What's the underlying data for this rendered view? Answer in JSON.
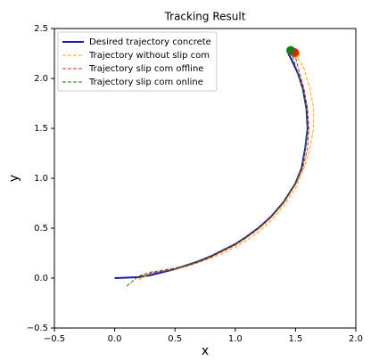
{
  "chart_data": {
    "type": "line",
    "title": "Tracking Result",
    "x_label": "x",
    "y_label": "y",
    "xlim": [
      -0.5,
      2.0
    ],
    "ylim": [
      -0.5,
      2.5
    ],
    "xticks": [
      {
        "value": -0.5,
        "label": "−0.5"
      },
      {
        "value": 0,
        "label": "0.0"
      },
      0.5,
      {
        "value": 1,
        "label": "1.0"
      },
      1.5,
      {
        "value": 2,
        "label": "2.0"
      }
    ],
    "yticks": [
      {
        "value": -0.5,
        "label": "−0.5"
      },
      {
        "value": 0,
        "label": "0.0"
      },
      0.5,
      {
        "value": 1,
        "label": "1.0"
      },
      1.5,
      {
        "value": 2,
        "label": "2.0"
      },
      2.5
    ],
    "legend": "upper left",
    "series": [
      {
        "name": "Desired trajectory concrete",
        "color": "#1a1aa6",
        "style": "solid",
        "end_marker": false,
        "x": [
          0,
          0.1,
          0.2,
          0.3,
          0.4,
          0.5,
          0.6,
          0.7,
          0.8,
          0.9,
          1.0,
          1.1,
          1.2,
          1.3,
          1.4,
          1.5,
          1.55,
          1.58,
          1.6,
          1.59,
          1.56,
          1.52,
          1.47,
          1.44
        ],
        "values": [
          0,
          0.005,
          0.01,
          0.03,
          0.06,
          0.09,
          0.13,
          0.17,
          0.22,
          0.28,
          0.34,
          0.42,
          0.51,
          0.62,
          0.76,
          0.95,
          1.1,
          1.3,
          1.5,
          1.7,
          1.9,
          2.05,
          2.18,
          2.25
        ]
      },
      {
        "name": "Trajectory without slip com",
        "color": "#ffa500",
        "style": "dashed",
        "end_marker": true,
        "x": [
          0.2,
          0.3,
          0.4,
          0.5,
          0.6,
          0.7,
          0.8,
          0.9,
          1.0,
          1.1,
          1.2,
          1.3,
          1.4,
          1.5,
          1.57,
          1.62,
          1.65,
          1.65,
          1.62,
          1.57,
          1.5
        ],
        "values": [
          -0.02,
          0.05,
          0.07,
          0.09,
          0.12,
          0.16,
          0.2,
          0.25,
          0.31,
          0.38,
          0.47,
          0.58,
          0.72,
          0.9,
          1.1,
          1.3,
          1.5,
          1.7,
          1.9,
          2.1,
          2.25
        ]
      },
      {
        "name": "Trajectory slip com offline",
        "color": "#e0201c",
        "style": "dashed",
        "end_marker": true,
        "x": [
          0.2,
          0.3,
          0.4,
          0.5,
          0.6,
          0.7,
          0.8,
          0.9,
          1.0,
          1.1,
          1.2,
          1.3,
          1.4,
          1.5,
          1.56,
          1.6,
          1.61,
          1.6,
          1.57,
          1.53,
          1.49
        ],
        "values": [
          0.0,
          0.05,
          0.07,
          0.09,
          0.12,
          0.16,
          0.21,
          0.27,
          0.33,
          0.41,
          0.5,
          0.61,
          0.75,
          0.94,
          1.1,
          1.3,
          1.5,
          1.7,
          1.9,
          2.07,
          2.26
        ]
      },
      {
        "name": "Trajectory slip com online",
        "color": "#1a7a1a",
        "style": "dashed",
        "end_marker": true,
        "x": [
          0.1,
          0.2,
          0.3,
          0.4,
          0.5,
          0.6,
          0.7,
          0.8,
          0.9,
          1.0,
          1.1,
          1.2,
          1.3,
          1.4,
          1.5,
          1.55,
          1.58,
          1.6,
          1.59,
          1.56,
          1.52,
          1.46
        ],
        "values": [
          -0.08,
          0.02,
          0.06,
          0.08,
          0.1,
          0.13,
          0.17,
          0.22,
          0.28,
          0.34,
          0.42,
          0.51,
          0.62,
          0.76,
          0.95,
          1.1,
          1.3,
          1.5,
          1.7,
          1.9,
          2.05,
          2.28
        ]
      }
    ]
  }
}
